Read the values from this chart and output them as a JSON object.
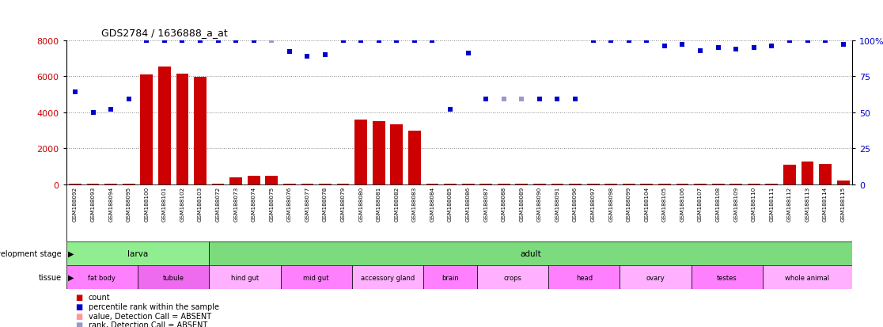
{
  "title": "GDS2784 / 1636888_a_at",
  "samples": [
    "GSM188092",
    "GSM188093",
    "GSM188094",
    "GSM188095",
    "GSM188100",
    "GSM188101",
    "GSM188102",
    "GSM188103",
    "GSM188072",
    "GSM188073",
    "GSM188074",
    "GSM188075",
    "GSM188076",
    "GSM188077",
    "GSM188078",
    "GSM188079",
    "GSM188080",
    "GSM188081",
    "GSM188082",
    "GSM188083",
    "GSM188084",
    "GSM188085",
    "GSM188086",
    "GSM188087",
    "GSM188088",
    "GSM188089",
    "GSM188090",
    "GSM188091",
    "GSM188096",
    "GSM188097",
    "GSM188098",
    "GSM188099",
    "GSM188104",
    "GSM188105",
    "GSM188106",
    "GSM188107",
    "GSM188108",
    "GSM188109",
    "GSM188110",
    "GSM188111",
    "GSM188112",
    "GSM188113",
    "GSM188114",
    "GSM188115"
  ],
  "counts": [
    50,
    50,
    50,
    50,
    6100,
    6550,
    6150,
    5950,
    50,
    390,
    470,
    460,
    50,
    50,
    50,
    50,
    3600,
    3500,
    3350,
    3000,
    50,
    50,
    50,
    50,
    50,
    50,
    50,
    50,
    50,
    50,
    50,
    50,
    50,
    50,
    50,
    50,
    50,
    50,
    50,
    50,
    1100,
    1250,
    1150,
    200
  ],
  "counts_absent": [
    false,
    false,
    false,
    false,
    false,
    false,
    false,
    false,
    false,
    false,
    false,
    false,
    false,
    false,
    false,
    false,
    false,
    false,
    false,
    false,
    false,
    false,
    false,
    false,
    false,
    false,
    false,
    false,
    false,
    false,
    false,
    false,
    false,
    false,
    false,
    false,
    false,
    false,
    false,
    false,
    false,
    false,
    false,
    false
  ],
  "ranks_pct": [
    64,
    50,
    52,
    59,
    100,
    100,
    100,
    100,
    100,
    100,
    100,
    100,
    92,
    89,
    90,
    100,
    100,
    100,
    100,
    100,
    100,
    52,
    91,
    59,
    59,
    59,
    59,
    59,
    59,
    100,
    100,
    100,
    100,
    96,
    97,
    93,
    95,
    94,
    95,
    96,
    100,
    100,
    100,
    97
  ],
  "ranks_absent": [
    false,
    false,
    false,
    false,
    false,
    false,
    false,
    false,
    false,
    false,
    false,
    true,
    false,
    false,
    false,
    false,
    false,
    false,
    false,
    false,
    false,
    false,
    false,
    false,
    true,
    true,
    false,
    false,
    false,
    false,
    false,
    false,
    false,
    false,
    false,
    false,
    false,
    false,
    false,
    false,
    false,
    false,
    false,
    false
  ],
  "ylim_count": [
    0,
    8000
  ],
  "ylim_rank": [
    0,
    100
  ],
  "yticks_count": [
    0,
    2000,
    4000,
    6000,
    8000
  ],
  "yticks_rank": [
    0,
    25,
    50,
    75,
    100
  ],
  "dev_stage_groups": [
    {
      "label": "larva",
      "start": 0,
      "end": 7,
      "color": "#90EE90"
    },
    {
      "label": "adult",
      "start": 8,
      "end": 43,
      "color": "#7CDB7C"
    }
  ],
  "tissue_groups": [
    {
      "label": "fat body",
      "start": 0,
      "end": 3,
      "color": "#FF80FF"
    },
    {
      "label": "tubule",
      "start": 4,
      "end": 7,
      "color": "#EE6AEE"
    },
    {
      "label": "hind gut",
      "start": 8,
      "end": 11,
      "color": "#FFB0FF"
    },
    {
      "label": "mid gut",
      "start": 12,
      "end": 15,
      "color": "#FF80FF"
    },
    {
      "label": "accessory gland",
      "start": 16,
      "end": 19,
      "color": "#FFB0FF"
    },
    {
      "label": "brain",
      "start": 20,
      "end": 22,
      "color": "#FF80FF"
    },
    {
      "label": "crops",
      "start": 23,
      "end": 26,
      "color": "#FFB0FF"
    },
    {
      "label": "head",
      "start": 27,
      "end": 30,
      "color": "#FF80FF"
    },
    {
      "label": "ovary",
      "start": 31,
      "end": 34,
      "color": "#FFB0FF"
    },
    {
      "label": "testes",
      "start": 35,
      "end": 38,
      "color": "#FF80FF"
    },
    {
      "label": "whole animal",
      "start": 39,
      "end": 43,
      "color": "#FFB0FF"
    }
  ],
  "bar_color": "#CC0000",
  "bar_absent_color": "#FF9999",
  "rank_color": "#0000CC",
  "rank_absent_color": "#9999CC",
  "bg_color": "#FFFFFF",
  "sample_bg_color": "#C8C8C8"
}
